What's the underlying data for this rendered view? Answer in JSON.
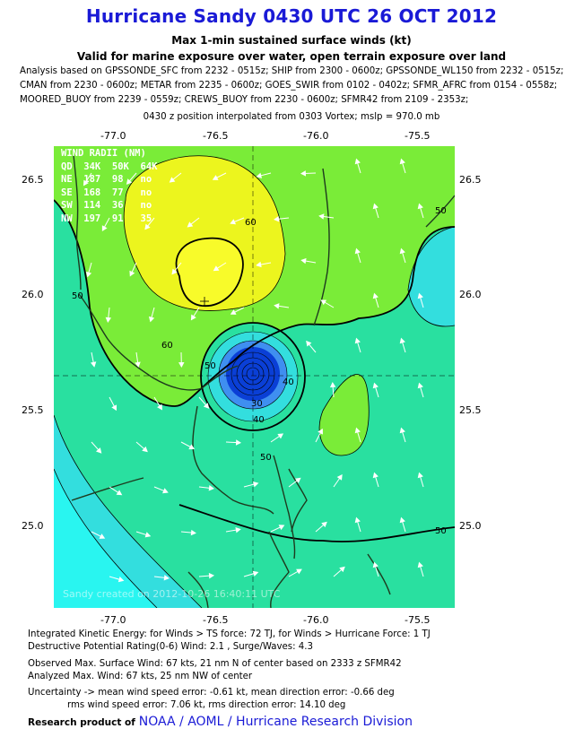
{
  "header": {
    "title": "Hurricane Sandy 0430 UTC 26 OCT 2012",
    "subtitle1": "Max 1-min sustained surface winds (kt)",
    "subtitle2": "Valid for marine exposure over water, open terrain exposure over land"
  },
  "analysis": {
    "line1": "Analysis based on GPSSONDE_SFC from 2232 - 0515z; SHIP from 2300 - 0600z; GPSSONDE_WL150 from 2232 - 0515z;",
    "line2": "CMAN from 2230 - 0600z; METAR from 2235 - 0600z; GOES_SWIR from 0102 - 0402z; SFMR_AFRC from 0154 - 0558z;",
    "line3": "MOORED_BUOY from 2239 - 0559z; CREWS_BUOY from 2230 - 0600z; SFMR42 from 2109 - 2353z;",
    "position": "0430 z position interpolated from 0303 Vortex; mslp = 970.0 mb"
  },
  "map": {
    "lon_ticks": [
      "-77.0",
      "-76.5",
      "-76.0",
      "-75.5"
    ],
    "lat_ticks": [
      "26.5",
      "26.0",
      "25.5",
      "25.0"
    ],
    "contour_labels": [
      "60",
      "50",
      "60",
      "50",
      "50",
      "40",
      "30",
      "50",
      "40",
      "50"
    ],
    "colors": {
      "lt30": "#0a3fd6",
      "c30": "#3f8ff0",
      "c40": "#33dede",
      "c50": "#29e0a0",
      "c60": "#7aec38",
      "c70": "#ecf51e",
      "c80": "#f8fb2a",
      "land": "#1e3a1e",
      "cyan_low": "#29f5f0"
    },
    "wind_radii": {
      "title": "WIND RADII (NM)",
      "header": "QD  34K  50K  64K",
      "rows": [
        "NE  187  98   no",
        "SE  168  77   no",
        "SW  114  36   no",
        "NW  197  91   35"
      ]
    },
    "stamp": "Sandy  created on 2012-10-26  16:40:11 UTC"
  },
  "footer": {
    "ike": "Integrated Kinetic Energy: for Winds > TS force: 72 TJ, for Winds > Hurricane Force: 1 TJ",
    "dpr": "Destructive Potential Rating(0-6)  Wind: 2.1 , Surge/Waves: 4.3",
    "observed": "Observed Max. Surface Wind: 67 kts, 21 nm N of center based on 2333 z SFMR42",
    "analyzed": "Analyzed Max. Wind: 67 kts, 25 nm  NW of center",
    "uncert1": "Uncertainty -> mean wind speed error:  -0.61 kt, mean direction error:  -0.66 deg",
    "uncert2": "rms wind speed error: 7.06 kt, rms direction error: 14.10 deg",
    "research_label": "Research product of",
    "org": "NOAA  /  AOML  /  Hurricane Research Division"
  }
}
